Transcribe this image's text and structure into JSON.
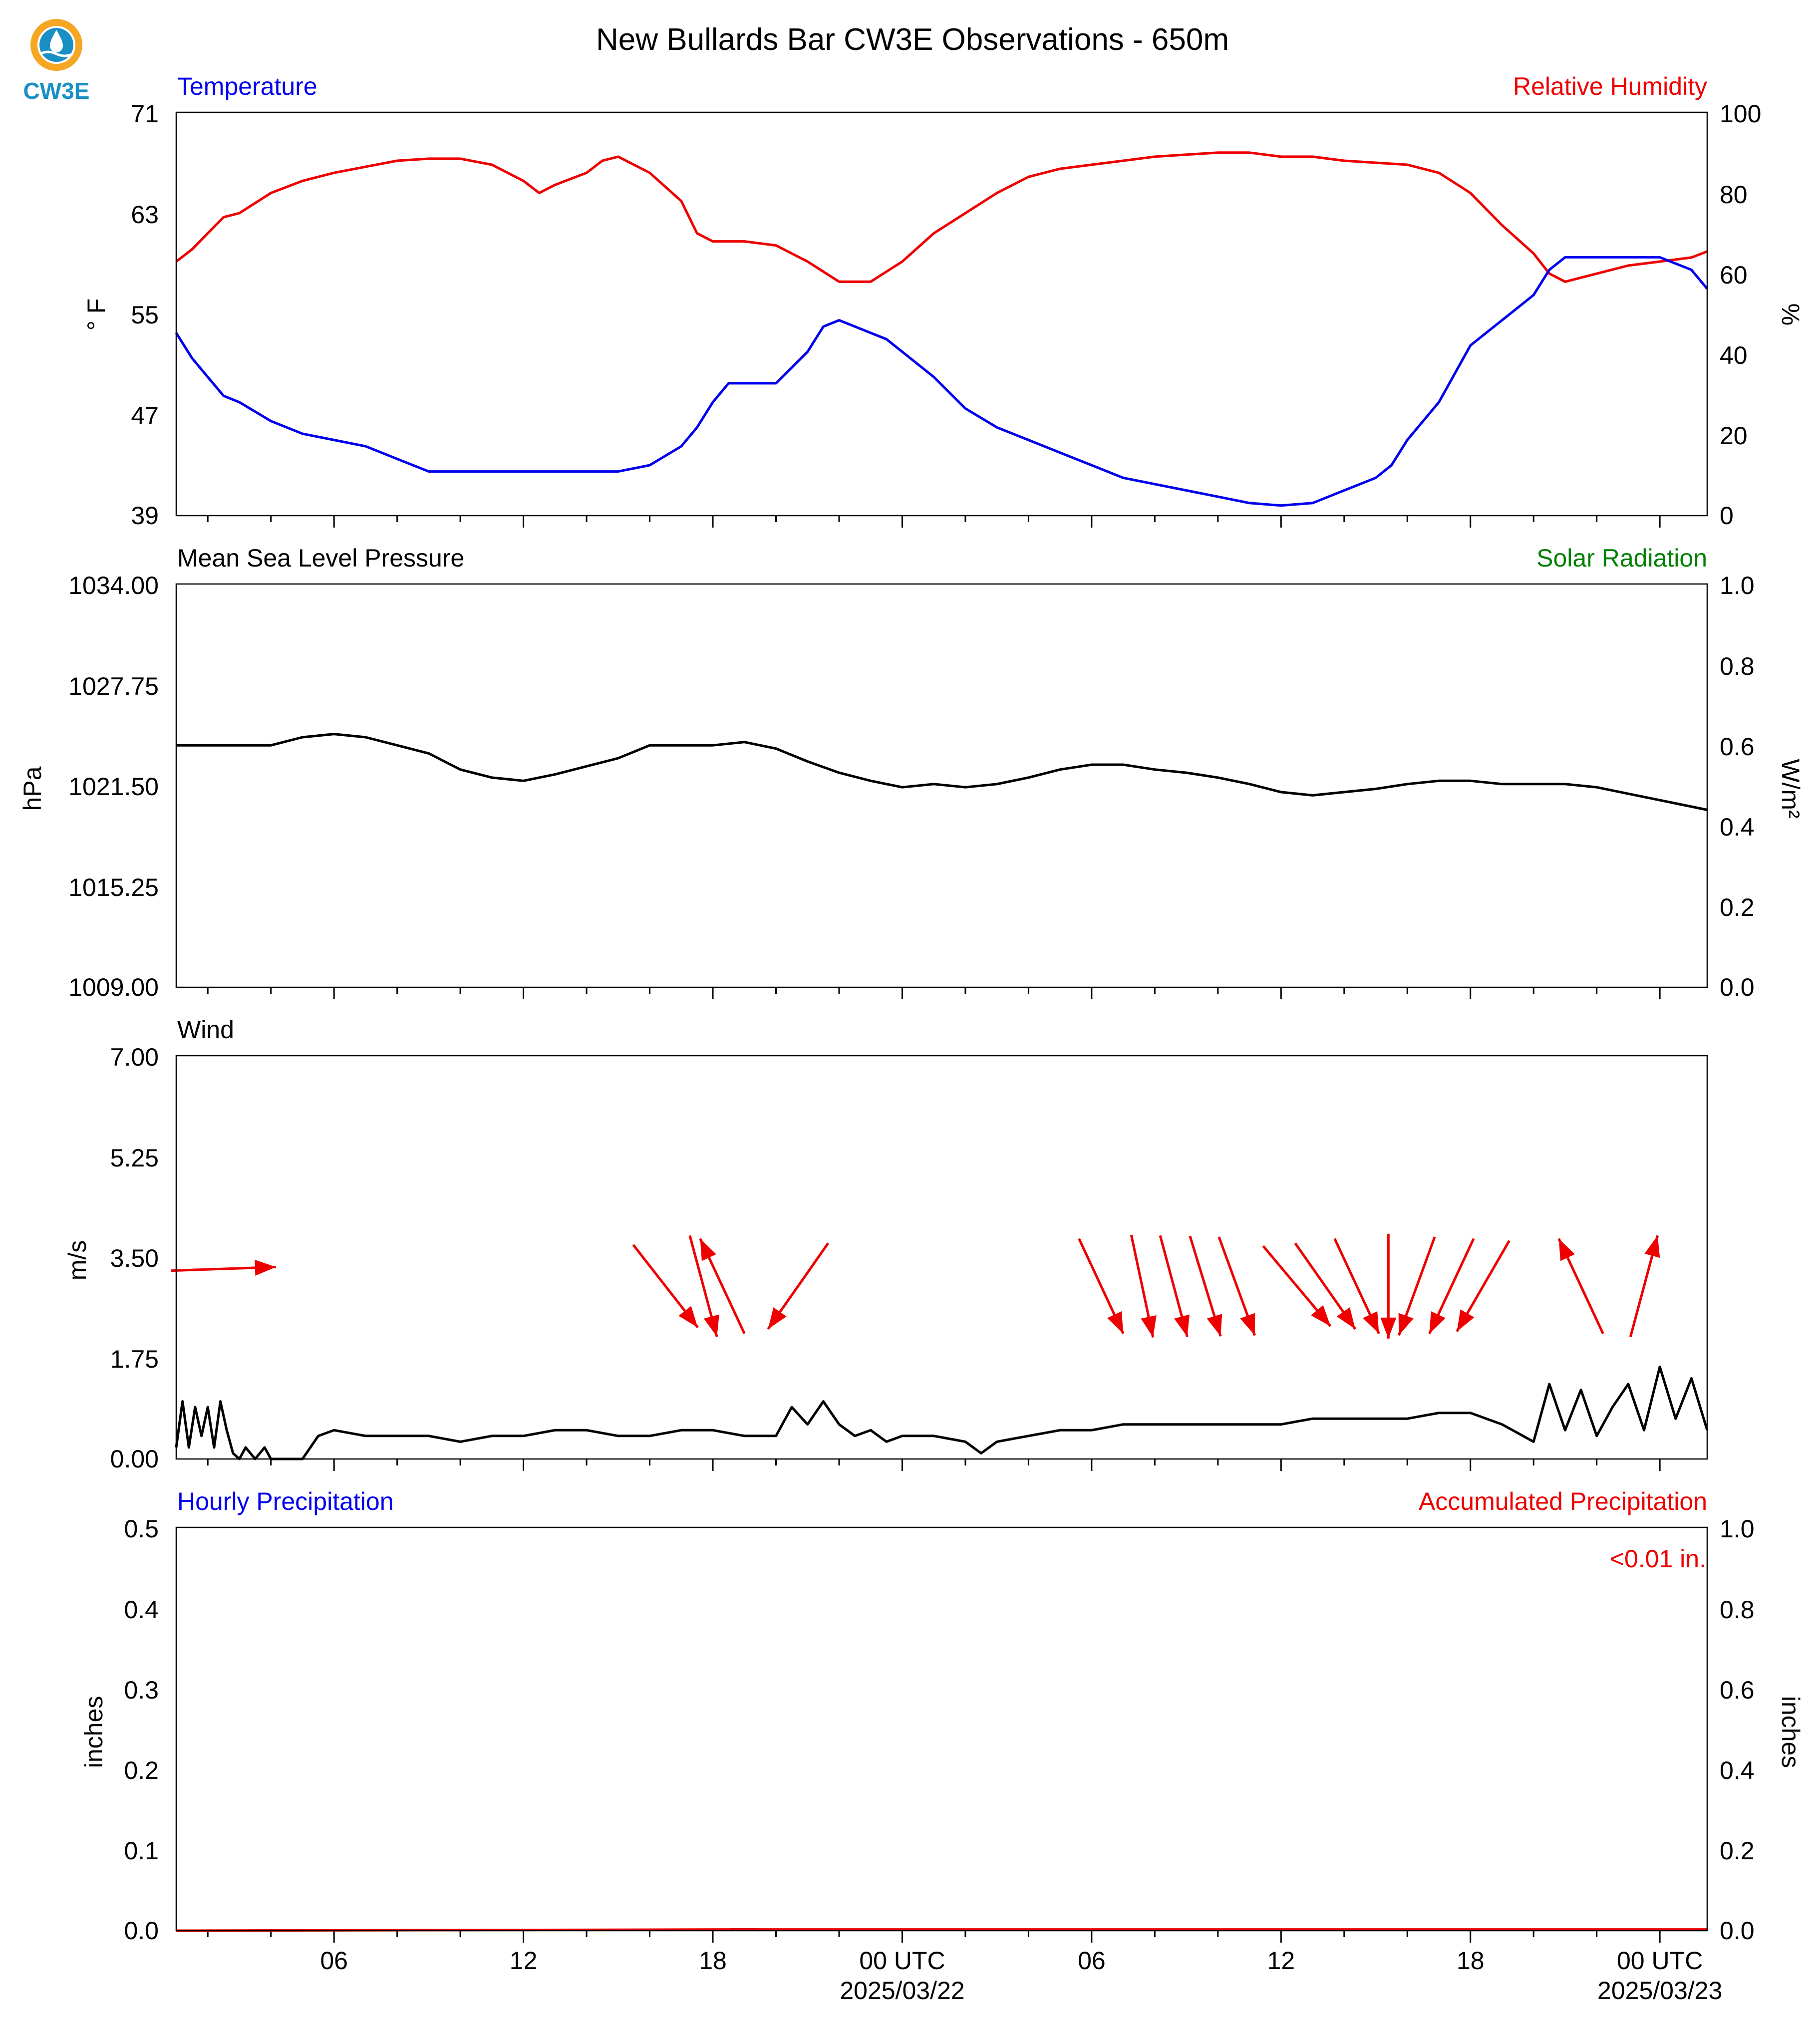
{
  "page": {
    "title": "New Bullards Bar CW3E Observations - 650m",
    "logo_text": "CW3E"
  },
  "colors": {
    "temperature": "#0000ee",
    "humidity": "#ee0000",
    "solar": "#008000",
    "pressure": "#000000",
    "wind": "#000000",
    "wind_arrows": "#ee0000",
    "hourly_precip": "#0000ee",
    "accum_precip": "#ee0000",
    "logo": "#1a8fc4",
    "logo_ring": "#f5a623"
  },
  "time_axis": {
    "range_hours": [
      -5,
      43.5
    ],
    "ticks": [
      {
        "hour": 0,
        "label": "06",
        "date": ""
      },
      {
        "hour": 6,
        "label": "12",
        "date": ""
      },
      {
        "hour": 12,
        "label": "18",
        "date": ""
      },
      {
        "hour": 18,
        "label": "00 UTC",
        "date": "2025/03/22"
      },
      {
        "hour": 24,
        "label": "06",
        "date": ""
      },
      {
        "hour": 30,
        "label": "12",
        "date": ""
      },
      {
        "hour": 36,
        "label": "18",
        "date": ""
      },
      {
        "hour": 42,
        "label": "00 UTC",
        "date": "2025/03/23"
      }
    ]
  },
  "chart_data": [
    {
      "id": "temp_rh",
      "type": "line",
      "left_title": "Temperature",
      "right_title": "Relative Humidity",
      "ylabel_left": "° F",
      "ylabel_right": "%",
      "ylim_left": [
        39,
        71
      ],
      "ylim_right": [
        0,
        100
      ],
      "yticks_left": [
        "71",
        "63",
        "55",
        "47",
        "39"
      ],
      "yticks_right": [
        "100",
        "80",
        "60",
        "40",
        "20",
        "0"
      ],
      "series": [
        {
          "name": "Temperature",
          "axis": "left",
          "x": [
            -5,
            -4.5,
            -4,
            -3.5,
            -3,
            -2,
            -1,
            0,
            1,
            2,
            3,
            4,
            5,
            6,
            7,
            8,
            9,
            10,
            11,
            11.5,
            12,
            12.5,
            13,
            14,
            15,
            15.5,
            16,
            17,
            17.5,
            18,
            19,
            20,
            21,
            22,
            23,
            24,
            25,
            26,
            27,
            28,
            29,
            30,
            31,
            32,
            33,
            33.5,
            34,
            35,
            36,
            37,
            38,
            38.5,
            39,
            39.5,
            40,
            41,
            42,
            43,
            43.5
          ],
          "y": [
            53.5,
            51.5,
            50,
            48.5,
            48,
            46.5,
            45.5,
            45,
            44.5,
            43.5,
            42.5,
            42.5,
            42.5,
            42.5,
            42.5,
            42.5,
            42.5,
            43,
            44.5,
            46,
            48,
            49.5,
            49.5,
            49.5,
            52,
            54,
            54.5,
            53.5,
            53,
            52,
            50,
            47.5,
            46,
            45,
            44,
            43,
            42,
            41.5,
            41,
            40.5,
            40,
            39.8,
            40,
            41,
            42,
            43,
            45,
            48,
            52.5,
            54.5,
            56.5,
            58.5,
            59.5,
            59.5,
            59.5,
            59.5,
            59.5,
            58.5,
            57
          ]
        },
        {
          "name": "Relative Humidity",
          "axis": "right",
          "x": [
            -5,
            -4.5,
            -4,
            -3.5,
            -3,
            -2,
            -1,
            0,
            1,
            2,
            3,
            4,
            5,
            6,
            6.5,
            7,
            8,
            8.5,
            9,
            10,
            11,
            11.5,
            12,
            13,
            14,
            15,
            16,
            17,
            18,
            19,
            20,
            21,
            22,
            23,
            24,
            25,
            26,
            27,
            28,
            29,
            30,
            31,
            32,
            33,
            34,
            35,
            36,
            37,
            38,
            38.5,
            39,
            40,
            41,
            42,
            43,
            43.5
          ],
          "y": [
            63,
            66,
            70,
            74,
            75,
            80,
            83,
            85,
            86.5,
            88,
            88.5,
            88.5,
            87,
            83,
            80,
            82,
            85,
            88,
            89,
            85,
            78,
            70,
            68,
            68,
            67,
            63,
            58,
            58,
            63,
            70,
            75,
            80,
            84,
            86,
            87,
            88,
            89,
            89.5,
            90,
            90,
            89,
            89,
            88,
            87.5,
            87,
            85,
            80,
            72,
            65,
            60,
            58,
            60,
            62,
            63,
            64,
            65.5
          ]
        }
      ]
    },
    {
      "id": "pressure_solar",
      "type": "line",
      "left_title": "Mean Sea Level Pressure",
      "right_title": "Solar Radiation",
      "ylabel_left": "hPa",
      "ylabel_right": "W/m²",
      "ylim_left": [
        1009,
        1034
      ],
      "ylim_right": [
        0,
        1
      ],
      "yticks_left": [
        "1034.00",
        "1027.75",
        "1021.50",
        "1015.25",
        "1009.00"
      ],
      "yticks_right": [
        "1.0",
        "0.8",
        "0.6",
        "0.4",
        "0.2",
        "0.0"
      ],
      "series": [
        {
          "name": "Mean Sea Level Pressure",
          "axis": "left",
          "x": [
            -5,
            -3,
            -2,
            -1,
            0,
            1,
            2,
            3,
            4,
            5,
            6,
            7,
            8,
            9,
            10,
            11,
            12,
            13,
            14,
            15,
            16,
            17,
            18,
            19,
            20,
            21,
            22,
            23,
            24,
            25,
            26,
            27,
            28,
            29,
            30,
            31,
            32,
            33,
            34,
            35,
            36,
            37,
            38,
            39,
            40,
            41,
            42,
            43,
            43.5
          ],
          "y": [
            1024.0,
            1024.0,
            1024.0,
            1024.5,
            1024.7,
            1024.5,
            1024.0,
            1023.5,
            1022.5,
            1022.0,
            1021.8,
            1022.2,
            1022.7,
            1023.2,
            1024.0,
            1024.0,
            1024.0,
            1024.2,
            1023.8,
            1023.0,
            1022.3,
            1021.8,
            1021.4,
            1021.6,
            1021.4,
            1021.6,
            1022.0,
            1022.5,
            1022.8,
            1022.8,
            1022.5,
            1022.3,
            1022.0,
            1021.6,
            1021.1,
            1020.9,
            1021.1,
            1021.3,
            1021.6,
            1021.8,
            1021.8,
            1021.6,
            1021.6,
            1021.6,
            1021.4,
            1021.0,
            1020.6,
            1020.2,
            1020.0
          ]
        }
      ]
    },
    {
      "id": "wind",
      "type": "line",
      "left_title": "Wind",
      "ylabel_left": "m/s",
      "ylim_left": [
        0,
        7
      ],
      "yticks_left": [
        "7.00",
        "5.25",
        "3.50",
        "1.75",
        "0.00"
      ],
      "series": [
        {
          "name": "Wind",
          "axis": "left",
          "x": [
            -5,
            -4.8,
            -4.6,
            -4.4,
            -4.2,
            -4,
            -3.8,
            -3.6,
            -3.4,
            -3.2,
            -3,
            -2.8,
            -2.5,
            -2.2,
            -2,
            -1.5,
            -1,
            -0.5,
            0,
            1,
            2,
            3,
            4,
            5,
            6,
            7,
            8,
            9,
            10,
            11,
            12,
            13,
            14,
            14.5,
            15,
            15.5,
            16,
            16.5,
            17,
            17.5,
            18,
            19,
            20,
            20.5,
            21,
            22,
            23,
            24,
            25,
            26,
            27,
            28,
            29,
            30,
            31,
            32,
            33,
            34,
            35,
            36,
            37,
            38,
            38.5,
            39,
            39.5,
            40,
            40.5,
            41,
            41.5,
            42,
            42.5,
            43,
            43.5
          ],
          "y": [
            0.2,
            1.0,
            0.2,
            0.9,
            0.4,
            0.9,
            0.2,
            1.0,
            0.5,
            0.1,
            0.0,
            0.2,
            0.0,
            0.2,
            0.0,
            0.0,
            0.0,
            0.4,
            0.5,
            0.4,
            0.4,
            0.4,
            0.3,
            0.4,
            0.4,
            0.5,
            0.5,
            0.4,
            0.4,
            0.5,
            0.5,
            0.4,
            0.4,
            0.9,
            0.6,
            1.0,
            0.6,
            0.4,
            0.5,
            0.3,
            0.4,
            0.4,
            0.3,
            0.1,
            0.3,
            0.4,
            0.5,
            0.5,
            0.6,
            0.6,
            0.6,
            0.6,
            0.6,
            0.6,
            0.7,
            0.7,
            0.7,
            0.7,
            0.8,
            0.8,
            0.6,
            0.3,
            1.3,
            0.5,
            1.2,
            0.4,
            0.9,
            1.3,
            0.5,
            1.6,
            0.7,
            1.4,
            0.5
          ]
        }
      ],
      "wind_vectors": {
        "description_units": "direction in compass degrees (direction arrow points), speed in m/s",
        "arrows": [
          {
            "hour": -3.5,
            "to_deg": 88,
            "speed": 3.3
          },
          {
            "hour": 10.5,
            "to_deg": 142,
            "speed": 3.0
          },
          {
            "hour": 11.7,
            "to_deg": 165,
            "speed": 3.0
          },
          {
            "hour": 12.3,
            "to_deg": 335,
            "speed": 3.0
          },
          {
            "hour": 14.7,
            "to_deg": 215,
            "speed": 3.0
          },
          {
            "hour": 24.3,
            "to_deg": 155,
            "speed": 3.0
          },
          {
            "hour": 25.6,
            "to_deg": 168,
            "speed": 3.0
          },
          {
            "hour": 26.6,
            "to_deg": 165,
            "speed": 3.0
          },
          {
            "hour": 27.6,
            "to_deg": 163,
            "speed": 3.0
          },
          {
            "hour": 28.6,
            "to_deg": 160,
            "speed": 3.0
          },
          {
            "hour": 30.5,
            "to_deg": 140,
            "speed": 3.0
          },
          {
            "hour": 31.4,
            "to_deg": 145,
            "speed": 3.0
          },
          {
            "hour": 32.4,
            "to_deg": 155,
            "speed": 3.0
          },
          {
            "hour": 33.4,
            "to_deg": 180,
            "speed": 3.0
          },
          {
            "hour": 34.3,
            "to_deg": 200,
            "speed": 3.0
          },
          {
            "hour": 35.4,
            "to_deg": 205,
            "speed": 3.0
          },
          {
            "hour": 36.4,
            "to_deg": 210,
            "speed": 3.0
          },
          {
            "hour": 39.5,
            "to_deg": 335,
            "speed": 3.0
          },
          {
            "hour": 41.5,
            "to_deg": 15,
            "speed": 3.0
          }
        ]
      }
    },
    {
      "id": "precip",
      "type": "bar",
      "left_title": "Hourly Precipitation",
      "right_title": "Accumulated Precipitation",
      "annotation": "<0.01 in.",
      "ylabel_left": "inches",
      "ylabel_right": "inches",
      "ylim_left": [
        0,
        0.5
      ],
      "ylim_right": [
        0,
        1
      ],
      "yticks_left": [
        "0.5",
        "0.4",
        "0.3",
        "0.2",
        "0.1",
        "0.0"
      ],
      "yticks_right": [
        "1.0",
        "0.8",
        "0.6",
        "0.4",
        "0.2",
        "0.0"
      ],
      "series": [
        {
          "name": "Hourly Precipitation",
          "axis": "left",
          "x": [
            13
          ],
          "values": [
            0.003
          ]
        },
        {
          "name": "Accumulated Precipitation",
          "axis": "right",
          "x": [
            -5,
            13,
            43.5
          ],
          "y": [
            0.0,
            0.003,
            0.003
          ]
        }
      ]
    }
  ]
}
